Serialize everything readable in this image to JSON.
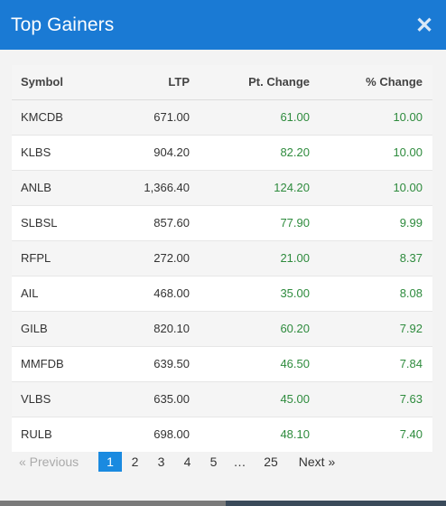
{
  "modal": {
    "title": "Top Gainers",
    "close_icon": "close-icon"
  },
  "table": {
    "headers": {
      "symbol": "Symbol",
      "ltp": "LTP",
      "pt_change": "Pt. Change",
      "pct_change": "% Change"
    },
    "rows": [
      {
        "symbol": "KMCDB",
        "ltp": "671.00",
        "pt_change": "61.00",
        "pct_change": "10.00"
      },
      {
        "symbol": "KLBS",
        "ltp": "904.20",
        "pt_change": "82.20",
        "pct_change": "10.00"
      },
      {
        "symbol": "ANLB",
        "ltp": "1,366.40",
        "pt_change": "124.20",
        "pct_change": "10.00"
      },
      {
        "symbol": "SLBSL",
        "ltp": "857.60",
        "pt_change": "77.90",
        "pct_change": "9.99"
      },
      {
        "symbol": "RFPL",
        "ltp": "272.00",
        "pt_change": "21.00",
        "pct_change": "8.37"
      },
      {
        "symbol": "AIL",
        "ltp": "468.00",
        "pt_change": "35.00",
        "pct_change": "8.08"
      },
      {
        "symbol": "GILB",
        "ltp": "820.10",
        "pt_change": "60.20",
        "pct_change": "7.92"
      },
      {
        "symbol": "MMFDB",
        "ltp": "639.50",
        "pt_change": "46.50",
        "pct_change": "7.84"
      },
      {
        "symbol": "VLBS",
        "ltp": "635.00",
        "pt_change": "45.00",
        "pct_change": "7.63"
      },
      {
        "symbol": "RULB",
        "ltp": "698.00",
        "pt_change": "48.10",
        "pct_change": "7.40"
      }
    ]
  },
  "pagination": {
    "prev_label": "«  Previous",
    "pages": [
      "1",
      "2",
      "3",
      "4",
      "5",
      "…",
      "25"
    ],
    "active_page": "1",
    "next_label": "Next  »"
  },
  "colors": {
    "header_bg": "#1a7ad4",
    "positive": "#2e8b3d",
    "active_page": "#1a8ae0"
  }
}
